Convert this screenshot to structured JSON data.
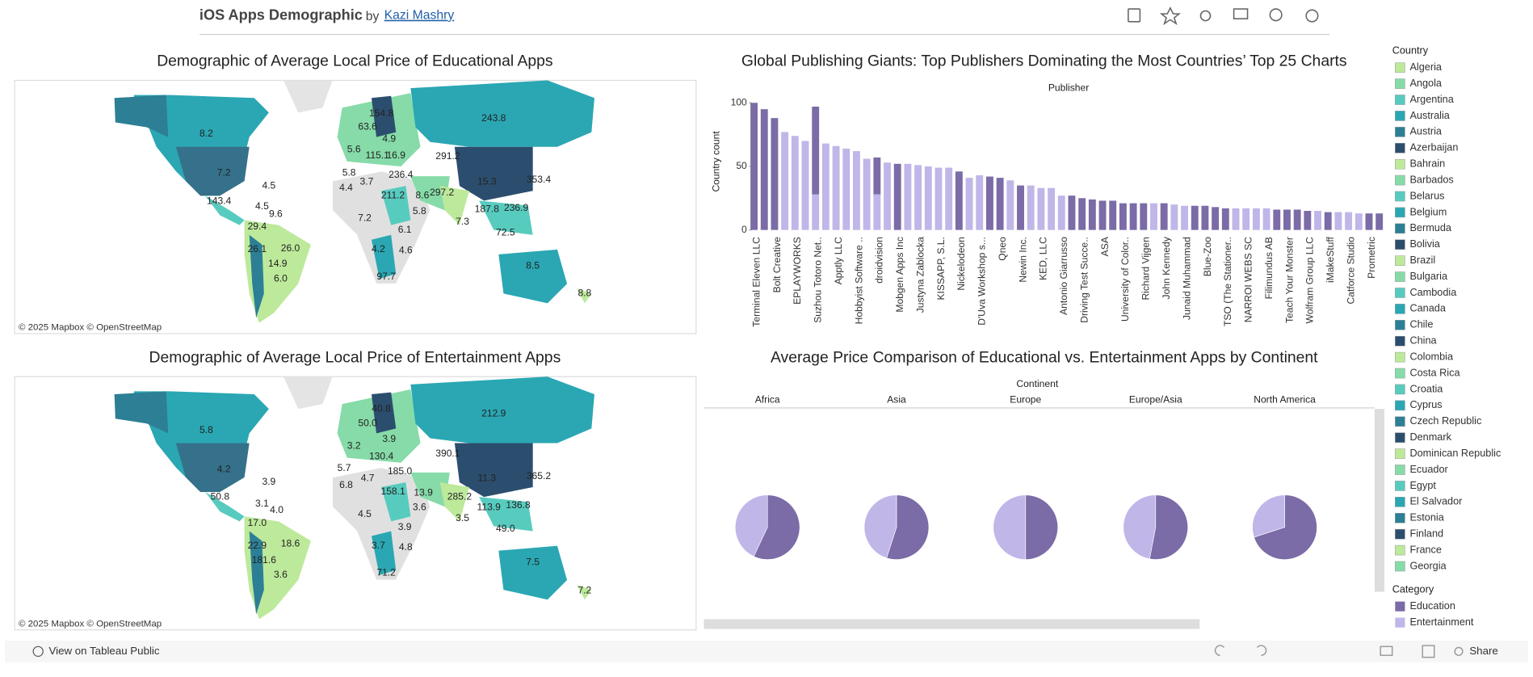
{
  "header": {
    "title": "iOS Apps Demographic",
    "by": "by",
    "author": "Kazi Mashry"
  },
  "maps": [
    {
      "title": "Demographic of Average Local Price of Educational Apps",
      "attribution": "© 2025 Mapbox  © OpenStreetMap",
      "labels": [
        "8.2",
        "7.2",
        "4.5",
        "143.4",
        "4.5",
        "9.6",
        "29.4",
        "26.1",
        "26.0",
        "14.9",
        "6.0",
        "154.8",
        "63.6",
        "4.9",
        "5.6",
        "115.1",
        "16.9",
        "291.2",
        "243.8",
        "5.8",
        "236.4",
        "3.7",
        "4.4",
        "211.2",
        "297.2",
        "15.3",
        "353.4",
        "187.8",
        "236.9",
        "8.6",
        "5.8",
        "7.2",
        "7.3",
        "6.1",
        "72.5",
        "4.2",
        "4.6",
        "97.7",
        "8.5",
        "8.8"
      ]
    },
    {
      "title": "Demographic of Average Local Price of Entertainment Apps",
      "attribution": "© 2025 Mapbox  © OpenStreetMap",
      "labels": [
        "5.8",
        "4.2",
        "3.9",
        "50.8",
        "3.1",
        "4.0",
        "17.0",
        "22.9",
        "18.6",
        "181.6",
        "3.6",
        "40.8",
        "50.0",
        "3.9",
        "3.2",
        "130.4",
        "5.7",
        "6.8",
        "4.7",
        "185.0",
        "390.1",
        "212.9",
        "158.1",
        "285.2",
        "11.3",
        "365.2",
        "13.9",
        "3.6",
        "113.9",
        "136.8",
        "3.5",
        "4.5",
        "3.9",
        "49.0",
        "3.7",
        "4.8",
        "71.2",
        "7.5",
        "7.2"
      ]
    }
  ],
  "chart_data": [
    {
      "type": "bar",
      "title": "Global Publishing Giants: Top Publishers Dominating the Most Countries’ Top 25 Charts",
      "x_label": "Publisher",
      "y_label": "Country count",
      "categories": [
        "Terminal Eleven LLC",
        null,
        "Bolt Creative",
        null,
        "EPLAYWORKS",
        null,
        "Suzhou Totoro Net..",
        null,
        "Apptly LLC",
        null,
        "Hobbyist Software ..",
        null,
        "droidvision",
        null,
        "Mobgen Apps Inc",
        null,
        "Justyna Zablocka",
        null,
        "KISSAPP, S.L.",
        null,
        "Nickelodeon",
        null,
        "D'Uva Workshop s...",
        null,
        "Qneo",
        null,
        "Newin Inc.",
        null,
        "KED, LLC",
        null,
        "Antonio Giarrusso",
        null,
        "Driving Test Succe..",
        null,
        "ASA",
        null,
        "University of Color..",
        null,
        "Richard Vijgen",
        null,
        "John Kennedy",
        null,
        "Junaid Muhammad",
        null,
        "Blue-Zoo",
        null,
        "TSO (The Stationer..",
        null,
        "NARROI WEBS SC",
        null,
        "Filimundus AB",
        null,
        "Teach Your Monster",
        null,
        "Wolfram Group LLC",
        null,
        "iMakeStuff",
        null,
        "Catforce Studio",
        null,
        "Prometric",
        null
      ],
      "series": [
        {
          "name": "Education",
          "color": "#7b6ba6",
          "values": [
            100,
            95,
            88,
            null,
            null,
            null,
            69,
            null,
            null,
            null,
            null,
            null,
            29,
            null,
            52,
            null,
            null,
            null,
            null,
            null,
            46,
            null,
            null,
            42,
            41,
            null,
            35,
            null,
            null,
            null,
            null,
            27,
            25,
            24,
            23,
            23,
            21,
            21,
            21,
            null,
            21,
            null,
            null,
            19,
            19,
            18,
            17,
            null,
            null,
            null,
            null,
            16,
            16,
            16,
            15,
            null,
            14,
            null,
            null,
            null,
            13,
            13
          ]
        },
        {
          "name": "Entertainment",
          "color": "#c0b6e8",
          "values": [
            null,
            null,
            null,
            77,
            74,
            70,
            28,
            68,
            66,
            64,
            62,
            56,
            28,
            53,
            null,
            52,
            51,
            50,
            49,
            49,
            null,
            41,
            43,
            null,
            null,
            39,
            null,
            35,
            33,
            33,
            27,
            null,
            null,
            null,
            null,
            null,
            null,
            null,
            null,
            21,
            null,
            20,
            19,
            null,
            null,
            null,
            null,
            17,
            17,
            17,
            17,
            null,
            null,
            null,
            null,
            15,
            null,
            14,
            14,
            13,
            null,
            null
          ]
        }
      ],
      "ylim": [
        0,
        100
      ],
      "yticks": [
        0,
        50,
        100
      ]
    },
    {
      "type": "pie",
      "title": "Average Price Comparison of Educational vs. Entertainment Apps by Continent",
      "facet_label": "Continent",
      "categories": [
        "Africa",
        "Asia",
        "Europe",
        "Europe/Asia",
        "North America"
      ],
      "series": [
        {
          "name": "Education",
          "color": "#7b6ba6",
          "values": [
            57,
            55,
            50,
            53,
            70
          ]
        },
        {
          "name": "Entertainment",
          "color": "#c0b6e8",
          "values": [
            43,
            45,
            50,
            47,
            30
          ]
        }
      ]
    }
  ],
  "legend": {
    "country_title": "Country",
    "category_title": "Category",
    "countries": [
      {
        "name": "Algeria",
        "color": "#bde99b"
      },
      {
        "name": "Angola",
        "color": "#86dba8"
      },
      {
        "name": "Argentina",
        "color": "#58cbbf"
      },
      {
        "name": "Australia",
        "color": "#2aa7b3"
      },
      {
        "name": "Austria",
        "color": "#2c7f95"
      },
      {
        "name": "Azerbaijan",
        "color": "#2c4e6e"
      },
      {
        "name": "Bahrain",
        "color": "#bde99b"
      },
      {
        "name": "Barbados",
        "color": "#86dba8"
      },
      {
        "name": "Belarus",
        "color": "#58cbbf"
      },
      {
        "name": "Belgium",
        "color": "#2aa7b3"
      },
      {
        "name": "Bermuda",
        "color": "#2c7f95"
      },
      {
        "name": "Bolivia",
        "color": "#2c4e6e"
      },
      {
        "name": "Brazil",
        "color": "#bde99b"
      },
      {
        "name": "Bulgaria",
        "color": "#86dba8"
      },
      {
        "name": "Cambodia",
        "color": "#58cbbf"
      },
      {
        "name": "Canada",
        "color": "#2aa7b3"
      },
      {
        "name": "Chile",
        "color": "#2c7f95"
      },
      {
        "name": "China",
        "color": "#2c4e6e"
      },
      {
        "name": "Colombia",
        "color": "#bde99b"
      },
      {
        "name": "Costa Rica",
        "color": "#86dba8"
      },
      {
        "name": "Croatia",
        "color": "#58cbbf"
      },
      {
        "name": "Cyprus",
        "color": "#2aa7b3"
      },
      {
        "name": "Czech Republic",
        "color": "#2c7f95"
      },
      {
        "name": "Denmark",
        "color": "#2c4e6e"
      },
      {
        "name": "Dominican Republic",
        "color": "#bde99b"
      },
      {
        "name": "Ecuador",
        "color": "#86dba8"
      },
      {
        "name": "Egypt",
        "color": "#58cbbf"
      },
      {
        "name": "El Salvador",
        "color": "#2aa7b3"
      },
      {
        "name": "Estonia",
        "color": "#2c7f95"
      },
      {
        "name": "Finland",
        "color": "#2c4e6e"
      },
      {
        "name": "France",
        "color": "#bde99b"
      },
      {
        "name": "Georgia",
        "color": "#86dba8"
      }
    ]
  },
  "footer": {
    "view": "View on Tableau Public",
    "share": "Share"
  }
}
